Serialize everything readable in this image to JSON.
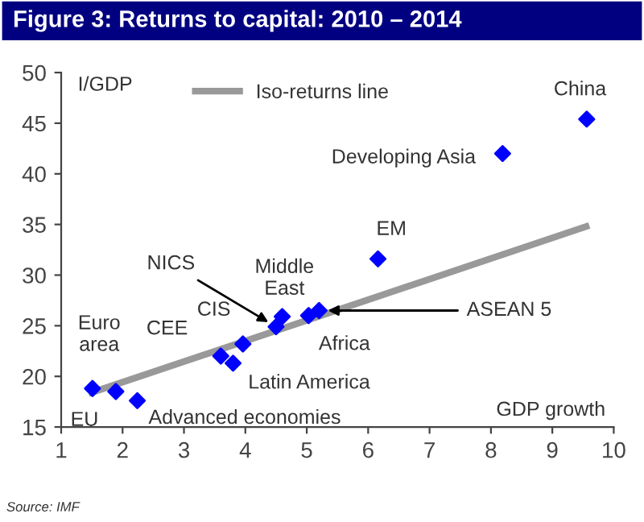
{
  "chart_data": {
    "type": "scatter",
    "title": "Figure 3: Returns to capital: 2010 – 2014",
    "xlabel": "GDP growth",
    "ylabel": "I/GDP",
    "series": [
      {
        "color": "#0000ff",
        "marker": "diamond",
        "x": [
          1.51,
          1.89,
          2.24,
          3.6,
          3.8,
          3.96,
          4.5,
          4.6,
          5.03,
          5.2,
          6.16,
          8.19,
          9.56
        ],
        "values": [
          18.8,
          18.5,
          17.6,
          22.0,
          21.3,
          23.2,
          24.9,
          25.9,
          26.0,
          26.5,
          31.6,
          42.0,
          45.4
        ]
      },
      {
        "type": "line",
        "name": "Iso-returns line",
        "color": "#999999",
        "x": [
          1.5,
          9.55
        ],
        "values": [
          18.4,
          34.8
        ]
      }
    ],
    "xlim": [
      1,
      10
    ],
    "xticks": [
      1,
      2,
      3,
      4,
      5,
      6,
      7,
      8,
      9,
      10
    ],
    "ylim": [
      15,
      50
    ],
    "yticks": [
      15,
      20,
      25,
      30,
      35,
      40,
      45,
      50
    ],
    "grid": false,
    "legend": "top left",
    "annotations": [
      {
        "text": "Euro\narea",
        "x": 1.51,
        "y": 18.8
      },
      {
        "text": "EU",
        "x": 1.89,
        "y": 18.5
      },
      {
        "text": "Advanced economies",
        "x": 2.24,
        "y": 17.6
      },
      {
        "text": "CEE",
        "x": 3.6,
        "y": 22.0
      },
      {
        "text": "Latin America",
        "x": 3.8,
        "y": 21.3
      },
      {
        "text": "CIS",
        "x": 3.96,
        "y": 23.2
      },
      {
        "text": "NICS",
        "x": 4.5,
        "y": 24.9
      },
      {
        "text": "Middle\nEast",
        "x": 4.6,
        "y": 25.9
      },
      {
        "text": "Africa",
        "x": 5.03,
        "y": 26.0
      },
      {
        "text": "ASEAN 5",
        "x": 5.2,
        "y": 26.5
      },
      {
        "text": "EM",
        "x": 6.16,
        "y": 31.6
      },
      {
        "text": "Developing Asia",
        "x": 8.19,
        "y": 42.0
      },
      {
        "text": "China",
        "x": 9.56,
        "y": 45.4
      },
      "Source: IMF"
    ]
  }
}
